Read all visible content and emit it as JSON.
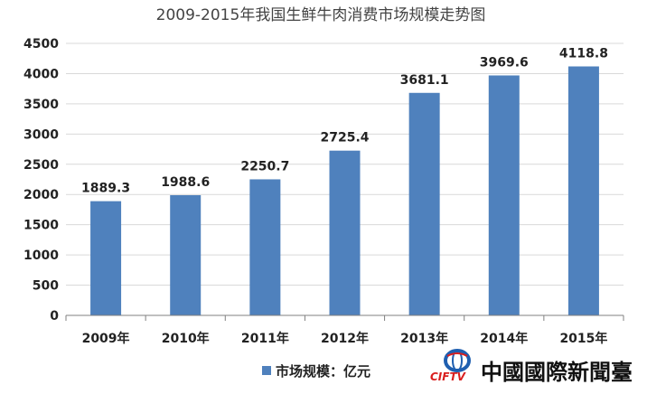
{
  "chart_data": {
    "type": "bar",
    "title": "2009-2015年我国生鲜牛肉消费市场规模走势图",
    "categories": [
      "2009年",
      "2010年",
      "2011年",
      "2012年",
      "2013年",
      "2014年",
      "2015年"
    ],
    "series": [
      {
        "name": "市场规模：亿元",
        "values": [
          1889.3,
          1988.6,
          2250.7,
          2725.4,
          3681.1,
          3969.6,
          4118.8
        ],
        "labels": [
          "1889.3",
          "1988.6",
          "2250.7",
          "2725.4",
          "3681.1",
          "3969.6",
          "4118.8"
        ],
        "color": "#4f81bd"
      }
    ],
    "ylim": [
      0,
      4500
    ],
    "yticks": [
      "0",
      "500",
      "1000",
      "1500",
      "2000",
      "2500",
      "3000",
      "3500",
      "4000",
      "4500"
    ],
    "grid": true,
    "legend": "bottom"
  },
  "watermark": {
    "chinese": "中國國際新聞臺",
    "english": "CIFTV"
  }
}
